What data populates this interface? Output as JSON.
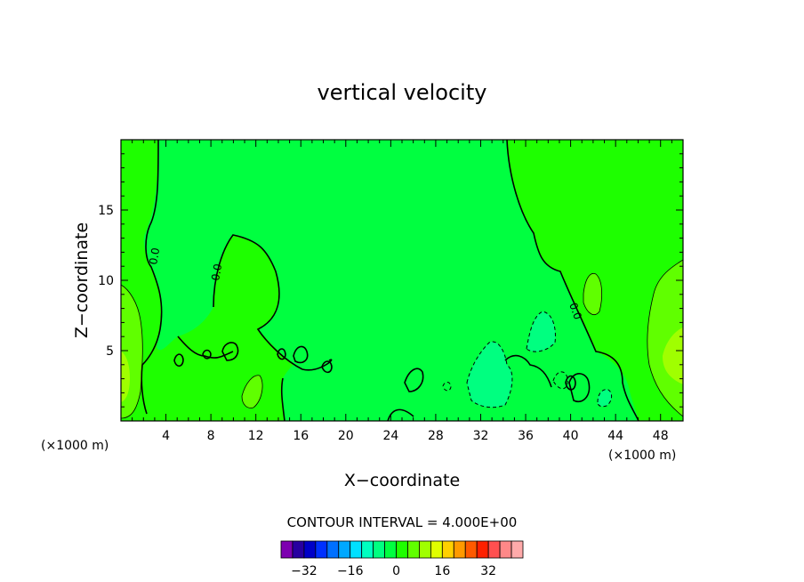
{
  "chart_data": {
    "type": "contour",
    "title": "vertical velocity",
    "xlabel": "X−coordinate",
    "ylabel": "Z−coordinate",
    "x_unit_label": "(×1000 m)",
    "xlim": [
      0,
      50
    ],
    "ylim": [
      0,
      20
    ],
    "x_ticks": [
      4,
      8,
      12,
      16,
      20,
      24,
      28,
      32,
      36,
      40,
      44,
      48
    ],
    "y_ticks": [
      5,
      10,
      15
    ],
    "contour_interval_text": "CONTOUR INTERVAL = 4.000E+00",
    "contour_labels": [
      "0.0",
      "0.0",
      "0.0"
    ],
    "colorbar": {
      "tick_labels": [
        "−32",
        "−16",
        "0",
        "16",
        "32"
      ],
      "tick_values": [
        -32,
        -16,
        0,
        16,
        32
      ],
      "colors": [
        "#7d00b0",
        "#2800a0",
        "#0000c8",
        "#0030ff",
        "#0070ff",
        "#00a8ff",
        "#00e0ff",
        "#00ffc0",
        "#00ff80",
        "#00ff40",
        "#1eff00",
        "#60ff00",
        "#a0ff00",
        "#e0ff00",
        "#ffd000",
        "#ff9a00",
        "#ff5a00",
        "#ff2000",
        "#ff5050",
        "#ff8888",
        "#ffaaaa"
      ]
    },
    "regions": [
      {
        "name": "weak-updraft-right",
        "color": "#60ff00"
      },
      {
        "name": "moderate-updraft-right",
        "color": "#a0ff00"
      },
      {
        "name": "weak-updraft-left",
        "color": "#60ff00"
      },
      {
        "name": "core-updraft-left",
        "color": "#a0ff00"
      },
      {
        "name": "weak-downdraft-center",
        "color": "#00ff80"
      },
      {
        "name": "background",
        "color": "#1eff00"
      },
      {
        "name": "near-zero",
        "color": "#00ff40"
      }
    ]
  }
}
